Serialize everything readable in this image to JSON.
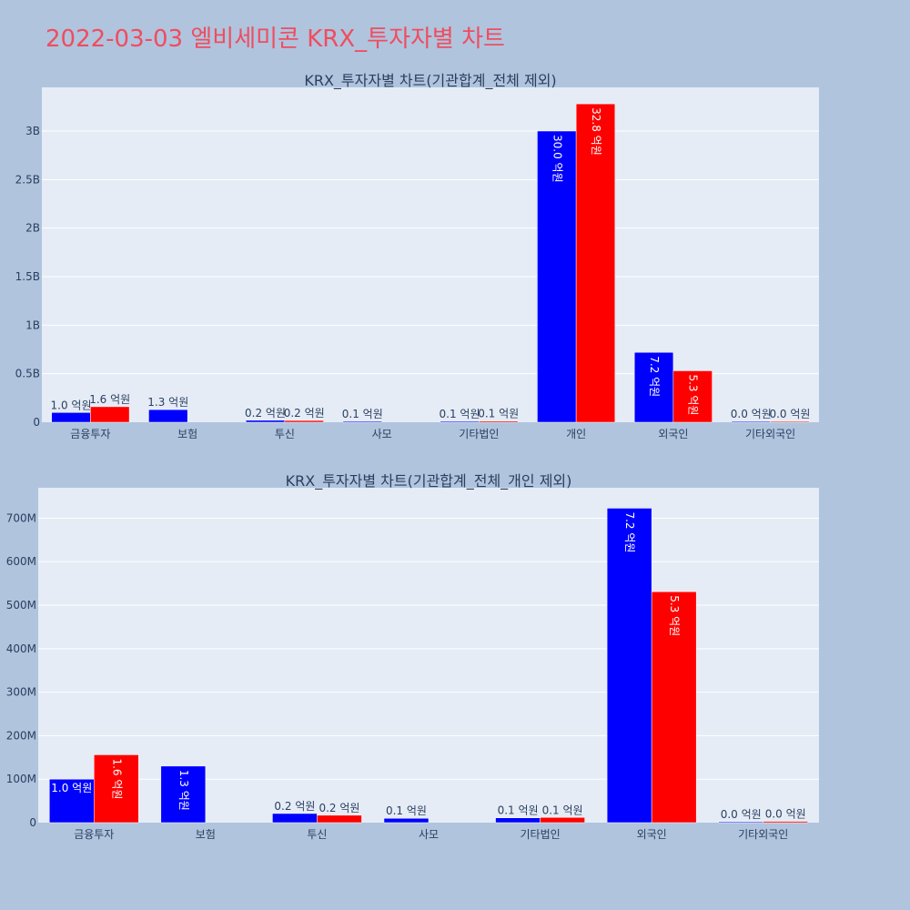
{
  "page_title": "2022-03-03 엘비세미콘 KRX_투자자별 차트",
  "colors": {
    "background": "#b0c4de",
    "plot_background": "#e5ecf6",
    "gridline": "#ffffff",
    "series_a": "#0000ff",
    "series_b": "#ff0000",
    "title_color": "#ef4d5f",
    "text_color": "#2a3f5f"
  },
  "chart_data": [
    {
      "type": "bar",
      "title": "KRX_투자자별 차트(기관합계_전체 제외)",
      "categories": [
        "금융투자",
        "보험",
        "투신",
        "사모",
        "기타법인",
        "개인",
        "외국인",
        "기타외국인"
      ],
      "ylim": [
        0,
        3450000000
      ],
      "yticks": [
        0,
        500000000,
        1000000000,
        1500000000,
        2000000000,
        2500000000,
        3000000000
      ],
      "ytick_labels": [
        "0",
        "0.5B",
        "1B",
        "1.5B",
        "2B",
        "2.5B",
        "3B"
      ],
      "grid": true,
      "series": [
        {
          "color": "#0000ff",
          "values": [
            100000000,
            130000000,
            20000000,
            10000000,
            10000000,
            3000000000,
            720000000,
            2000000
          ],
          "labels": [
            "1.0 억원",
            "1.3 억원",
            "0.2 억원",
            "0.1 억원",
            "0.1 억원",
            "30.0 억원",
            "7.2 억원",
            "0.0 억원"
          ]
        },
        {
          "color": "#ff0000",
          "values": [
            160000000,
            null,
            18000000,
            null,
            12000000,
            3280000000,
            530000000,
            3000000
          ],
          "labels": [
            "1.6 억원",
            "",
            "0.2 억원",
            "",
            "0.1 억원",
            "32.8 억원",
            "5.3 억원",
            "0.0 억원"
          ]
        }
      ]
    },
    {
      "type": "bar",
      "title": "KRX_투자자별 차트(기관합계_전체_개인 제외)",
      "categories": [
        "금융투자",
        "보험",
        "투신",
        "사모",
        "기타법인",
        "외국인",
        "기타외국인"
      ],
      "ylim": [
        0,
        770000000
      ],
      "yticks": [
        0,
        100000000,
        200000000,
        300000000,
        400000000,
        500000000,
        600000000,
        700000000
      ],
      "ytick_labels": [
        "0",
        "100M",
        "200M",
        "300M",
        "400M",
        "500M",
        "600M",
        "700M"
      ],
      "grid": true,
      "series": [
        {
          "color": "#0000ff",
          "values": [
            100000000,
            130000000,
            21000000,
            10000000,
            11000000,
            723000000,
            2000000
          ],
          "labels": [
            "1.0 억원",
            "1.3 억원",
            "0.2 억원",
            "0.1 억원",
            "0.1 억원",
            "7.2 억원",
            "0.0 억원"
          ]
        },
        {
          "color": "#ff0000",
          "values": [
            156000000,
            null,
            17000000,
            null,
            12000000,
            531000000,
            3000000
          ],
          "labels": [
            "1.6 억원",
            "",
            "0.2 억원",
            "",
            "0.1 억원",
            "5.3 억원",
            "0.0 억원"
          ]
        }
      ]
    }
  ]
}
